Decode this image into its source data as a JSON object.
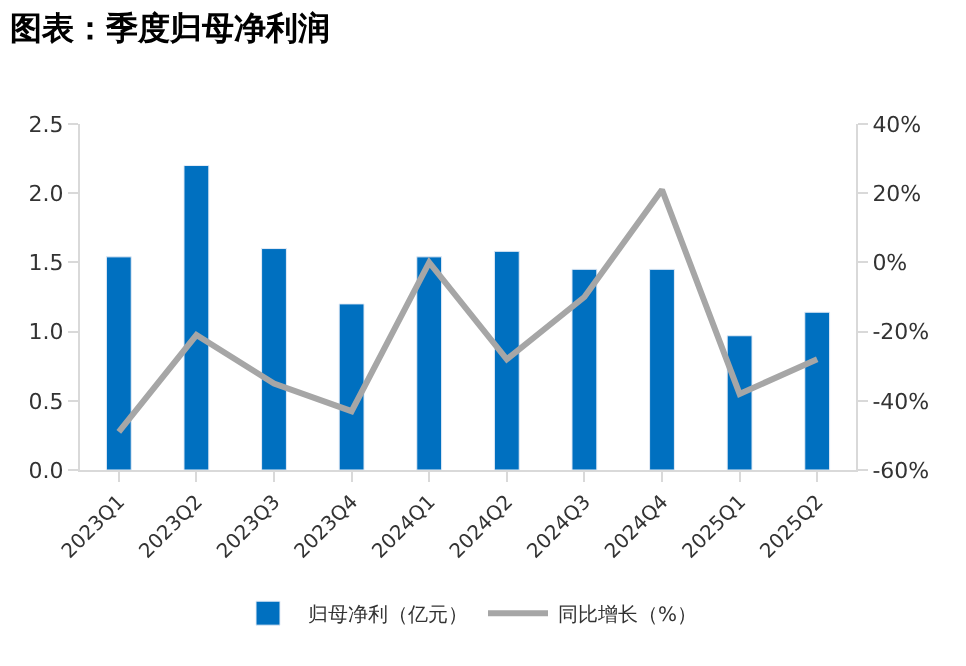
{
  "chart_data": {
    "type": "bar",
    "title": "图表：季度归母净利润",
    "categories": [
      "2023Q1",
      "2023Q2",
      "2023Q3",
      "2023Q4",
      "2024Q1",
      "2024Q2",
      "2024Q3",
      "2024Q4",
      "2025Q1",
      "2025Q2"
    ],
    "series": [
      {
        "name": "归母净利（亿元）",
        "color": "#0070c0",
        "values": [
          1.54,
          2.2,
          1.6,
          1.2,
          1.54,
          1.58,
          1.45,
          1.45,
          0.97,
          1.14
        ]
      },
      {
        "name": "同比增长（%）",
        "type": "line",
        "axis": "y2",
        "color": "#a6a6a6",
        "values": [
          -49,
          -21,
          -35,
          -43,
          0,
          -28,
          -10,
          21,
          -38,
          -28
        ]
      }
    ],
    "ylim": [
      0,
      2.5
    ],
    "yticks": [
      {
        "value": 0,
        "label": "0.0"
      },
      {
        "value": 0.5,
        "label": "0.5"
      },
      {
        "value": 1,
        "label": "1.0"
      },
      {
        "value": 1.5,
        "label": "1.5"
      },
      {
        "value": 2,
        "label": "2.0"
      },
      {
        "value": 2.5,
        "label": "2.5"
      }
    ],
    "y2lim": [
      -60,
      40
    ],
    "y2ticks": [
      {
        "value": -60,
        "label": "-60%"
      },
      {
        "value": -40,
        "label": "-40%"
      },
      {
        "value": -20,
        "label": "-20%"
      },
      {
        "value": 0,
        "label": "0%"
      },
      {
        "value": 20,
        "label": "20%"
      },
      {
        "value": 40,
        "label": "40%"
      }
    ],
    "legend": "bottom",
    "marker": "none",
    "line_style": "solid"
  }
}
